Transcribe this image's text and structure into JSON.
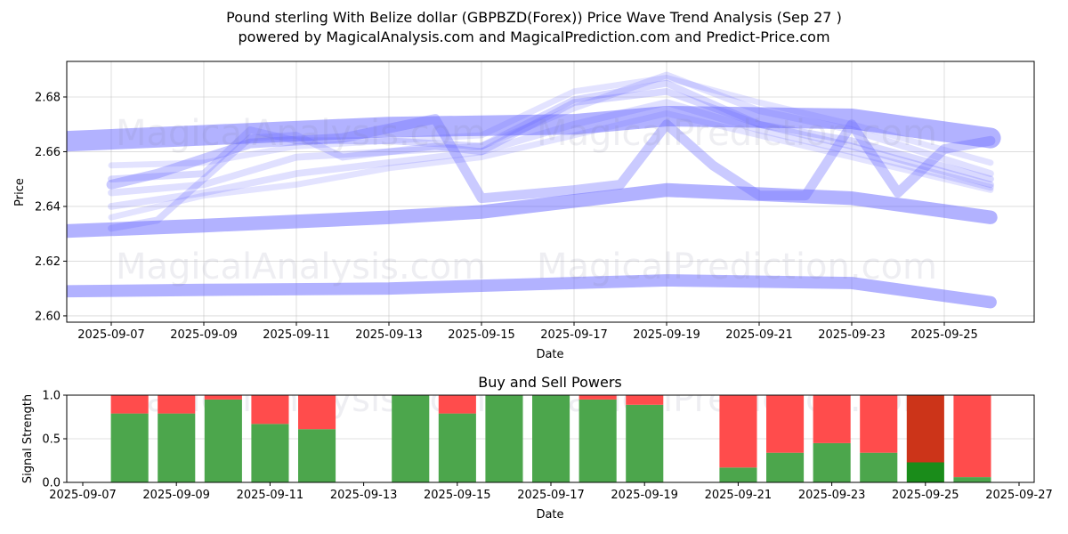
{
  "header": {
    "title": "Pound sterling With Belize dollar (GBPBZD(Forex)) Price Wave Trend Analysis (Sep 27 )",
    "subtitle": "powered by MagicalAnalysis.com and MagicalPrediction.com and Predict-Price.com"
  },
  "watermarks": {
    "left": "MagicalAnalysis.com",
    "right": "MagicalPrediction.com"
  },
  "colors": {
    "wave": "#6666ff",
    "buy": "#4ca64c",
    "sell": "#ff4c4c",
    "buy_highlight": "#1a8c1a",
    "sell_highlight": "#cc3419"
  },
  "chart_data": [
    {
      "type": "area",
      "title": "",
      "xlabel": "Date",
      "ylabel": "Price",
      "ylim": [
        2.5977,
        2.693
      ],
      "xlim": [
        "2025-09-06",
        "2025-09-27"
      ],
      "grid": true,
      "x_ticks": [
        "2025-09-07",
        "2025-09-09",
        "2025-09-11",
        "2025-09-13",
        "2025-09-15",
        "2025-09-17",
        "2025-09-19",
        "2025-09-21",
        "2025-09-23",
        "2025-09-25"
      ],
      "y_ticks": [
        "2.60",
        "2.62",
        "2.64",
        "2.66",
        "2.68"
      ],
      "bands": [
        {
          "name": "wave-band-top",
          "width": 0.0075,
          "opacity": 0.5,
          "points": [
            [
              "2025-09-06",
              2.6638
            ],
            [
              "2025-09-09",
              2.666
            ],
            [
              "2025-09-13",
              2.669
            ],
            [
              "2025-09-17",
              2.67
            ],
            [
              "2025-09-19",
              2.673
            ],
            [
              "2025-09-23",
              2.672
            ],
            [
              "2025-09-26",
              2.665
            ]
          ]
        },
        {
          "name": "wave-band-upper-mid",
          "width": 0.005,
          "opacity": 0.5,
          "points": [
            [
              "2025-09-06",
              2.631
            ],
            [
              "2025-09-09",
              2.633
            ],
            [
              "2025-09-13",
              2.636
            ],
            [
              "2025-09-15",
              2.638
            ],
            [
              "2025-09-17",
              2.642
            ],
            [
              "2025-09-19",
              2.646
            ],
            [
              "2025-09-23",
              2.643
            ],
            [
              "2025-09-26",
              2.636
            ]
          ]
        },
        {
          "name": "wave-band-lower",
          "width": 0.0045,
          "opacity": 0.5,
          "points": [
            [
              "2025-09-06",
              2.609
            ],
            [
              "2025-09-09",
              2.6095
            ],
            [
              "2025-09-13",
              2.61
            ],
            [
              "2025-09-17",
              2.612
            ],
            [
              "2025-09-19",
              2.613
            ],
            [
              "2025-09-23",
              2.612
            ],
            [
              "2025-09-26",
              2.605
            ]
          ]
        },
        {
          "name": "wave-band-oscillating",
          "width": 0.0035,
          "opacity": 0.35,
          "points": [
            [
              "2025-09-07",
              2.648
            ],
            [
              "2025-09-08",
              2.652
            ],
            [
              "2025-09-10",
              2.663
            ],
            [
              "2025-09-12",
              2.665
            ],
            [
              "2025-09-14",
              2.672
            ],
            [
              "2025-09-15",
              2.643
            ],
            [
              "2025-09-17",
              2.646
            ],
            [
              "2025-09-18",
              2.648
            ],
            [
              "2025-09-19",
              2.67
            ],
            [
              "2025-09-20",
              2.655
            ],
            [
              "2025-09-21",
              2.644
            ],
            [
              "2025-09-22",
              2.644
            ],
            [
              "2025-09-23",
              2.67
            ],
            [
              "2025-09-24",
              2.645
            ],
            [
              "2025-09-25",
              2.661
            ],
            [
              "2025-09-26",
              2.664
            ]
          ]
        },
        {
          "name": "wave-line-1",
          "width": 0.0025,
          "opacity": 0.25,
          "points": [
            [
              "2025-09-07",
              2.632
            ],
            [
              "2025-09-08",
              2.635
            ],
            [
              "2025-09-10",
              2.665
            ],
            [
              "2025-09-11",
              2.666
            ],
            [
              "2025-09-12",
              2.658
            ],
            [
              "2025-09-14",
              2.662
            ],
            [
              "2025-09-15",
              2.66
            ],
            [
              "2025-09-17",
              2.678
            ],
            [
              "2025-09-19",
              2.682
            ],
            [
              "2025-09-21",
              2.67
            ],
            [
              "2025-09-23",
              2.664
            ],
            [
              "2025-09-26",
              2.65
            ]
          ]
        },
        {
          "name": "wave-line-2",
          "width": 0.0025,
          "opacity": 0.25,
          "points": [
            [
              "2025-09-07",
              2.65
            ],
            [
              "2025-09-09",
              2.652
            ],
            [
              "2025-09-10",
              2.668
            ],
            [
              "2025-09-11",
              2.664
            ],
            [
              "2025-09-13",
              2.664
            ],
            [
              "2025-09-15",
              2.662
            ],
            [
              "2025-09-17",
              2.679
            ],
            [
              "2025-09-19",
              2.685
            ],
            [
              "2025-09-21",
              2.67
            ],
            [
              "2025-09-23",
              2.662
            ],
            [
              "2025-09-26",
              2.648
            ]
          ]
        },
        {
          "name": "wave-line-3",
          "width": 0.0025,
          "opacity": 0.2,
          "points": [
            [
              "2025-09-07",
              2.645
            ],
            [
              "2025-09-09",
              2.648
            ],
            [
              "2025-09-11",
              2.658
            ],
            [
              "2025-09-13",
              2.66
            ],
            [
              "2025-09-15",
              2.662
            ],
            [
              "2025-09-17",
              2.676
            ],
            [
              "2025-09-19",
              2.688
            ],
            [
              "2025-09-21",
              2.675
            ],
            [
              "2025-09-23",
              2.668
            ],
            [
              "2025-09-26",
              2.652
            ]
          ]
        },
        {
          "name": "wave-line-4",
          "width": 0.0025,
          "opacity": 0.2,
          "points": [
            [
              "2025-09-07",
              2.64
            ],
            [
              "2025-09-09",
              2.645
            ],
            [
              "2025-09-11",
              2.652
            ],
            [
              "2025-09-13",
              2.656
            ],
            [
              "2025-09-15",
              2.66
            ],
            [
              "2025-09-17",
              2.67
            ],
            [
              "2025-09-19",
              2.678
            ],
            [
              "2025-09-21",
              2.668
            ],
            [
              "2025-09-23",
              2.66
            ],
            [
              "2025-09-26",
              2.647
            ]
          ]
        },
        {
          "name": "wave-line-5",
          "width": 0.0022,
          "opacity": 0.18,
          "points": [
            [
              "2025-09-07",
              2.636
            ],
            [
              "2025-09-09",
              2.644
            ],
            [
              "2025-09-11",
              2.648
            ],
            [
              "2025-09-13",
              2.654
            ],
            [
              "2025-09-15",
              2.658
            ],
            [
              "2025-09-17",
              2.666
            ],
            [
              "2025-09-19",
              2.674
            ],
            [
              "2025-09-21",
              2.666
            ],
            [
              "2025-09-23",
              2.658
            ],
            [
              "2025-09-26",
              2.646
            ]
          ]
        },
        {
          "name": "wave-line-6",
          "width": 0.0022,
          "opacity": 0.18,
          "points": [
            [
              "2025-09-07",
              2.655
            ],
            [
              "2025-09-09",
              2.656
            ],
            [
              "2025-09-11",
              2.662
            ],
            [
              "2025-09-13",
              2.664
            ],
            [
              "2025-09-15",
              2.666
            ],
            [
              "2025-09-17",
              2.682
            ],
            [
              "2025-09-19",
              2.687
            ],
            [
              "2025-09-21",
              2.678
            ],
            [
              "2025-09-23",
              2.67
            ],
            [
              "2025-09-26",
              2.656
            ]
          ]
        }
      ]
    },
    {
      "type": "bar",
      "title": "Buy and Sell Powers",
      "xlabel": "Date",
      "ylabel": "Signal Strength",
      "ylim": [
        0,
        1.0
      ],
      "xlim": [
        "2025-09-06",
        "2025-09-27"
      ],
      "grid": true,
      "x_ticks": [
        "2025-09-07",
        "2025-09-09",
        "2025-09-11",
        "2025-09-13",
        "2025-09-15",
        "2025-09-17",
        "2025-09-19",
        "2025-09-21",
        "2025-09-23",
        "2025-09-25",
        "2025-09-27"
      ],
      "y_ticks": [
        "0.0",
        "0.5",
        "1.0"
      ],
      "categories": [
        "2025-09-08",
        "2025-09-09",
        "2025-09-10",
        "2025-09-11",
        "2025-09-12",
        "2025-09-14",
        "2025-09-15",
        "2025-09-16",
        "2025-09-17",
        "2025-09-18",
        "2025-09-19",
        "2025-09-21",
        "2025-09-22",
        "2025-09-23",
        "2025-09-24",
        "2025-09-25",
        "2025-09-26"
      ],
      "series": [
        {
          "name": "Buy",
          "values": [
            0.79,
            0.79,
            0.95,
            0.67,
            0.61,
            1.0,
            0.79,
            1.0,
            1.0,
            0.95,
            0.89,
            0.17,
            0.34,
            0.45,
            0.34,
            0.23,
            0.06
          ]
        },
        {
          "name": "Sell",
          "values": [
            0.21,
            0.21,
            0.05,
            0.33,
            0.39,
            0.0,
            0.21,
            0.0,
            0.0,
            0.05,
            0.11,
            0.83,
            0.66,
            0.55,
            0.66,
            0.77,
            0.94
          ]
        }
      ],
      "highlighted": [
        "2025-09-25"
      ]
    }
  ]
}
